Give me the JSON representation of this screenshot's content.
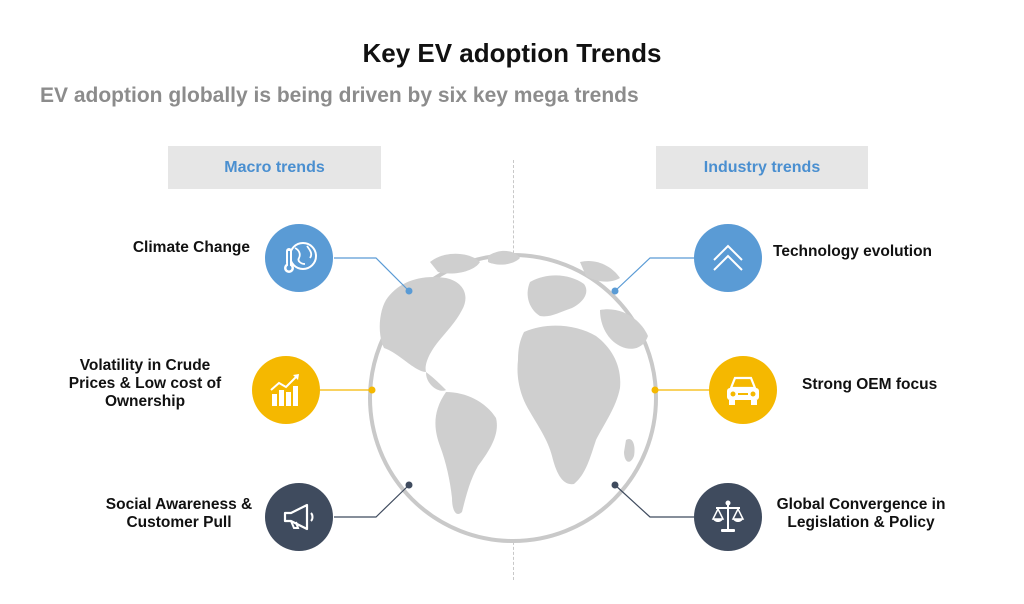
{
  "title": "Key EV adoption Trends",
  "subtitle": "EV adoption globally is being driven by six key mega trends",
  "columns": {
    "left": "Macro trends",
    "right": "Industry trends"
  },
  "macro": [
    {
      "label": "Climate Change",
      "icon": "globe-thermometer-icon",
      "color": "#5a9bd5"
    },
    {
      "label": "Volatility in Crude Prices & Low cost of Ownership",
      "icon": "rising-chart-icon",
      "color": "#f5b800"
    },
    {
      "label": "Social Awareness & Customer Pull",
      "icon": "megaphone-icon",
      "color": "#3f4b5e"
    }
  ],
  "industry": [
    {
      "label": "Technology evolution",
      "icon": "chevron-up-icon",
      "color": "#5a9bd5"
    },
    {
      "label": "Strong OEM focus",
      "icon": "car-icon",
      "color": "#f5b800"
    },
    {
      "label": "Global Convergence in Legislation & Policy",
      "icon": "scales-icon",
      "color": "#3f4b5e"
    }
  ]
}
